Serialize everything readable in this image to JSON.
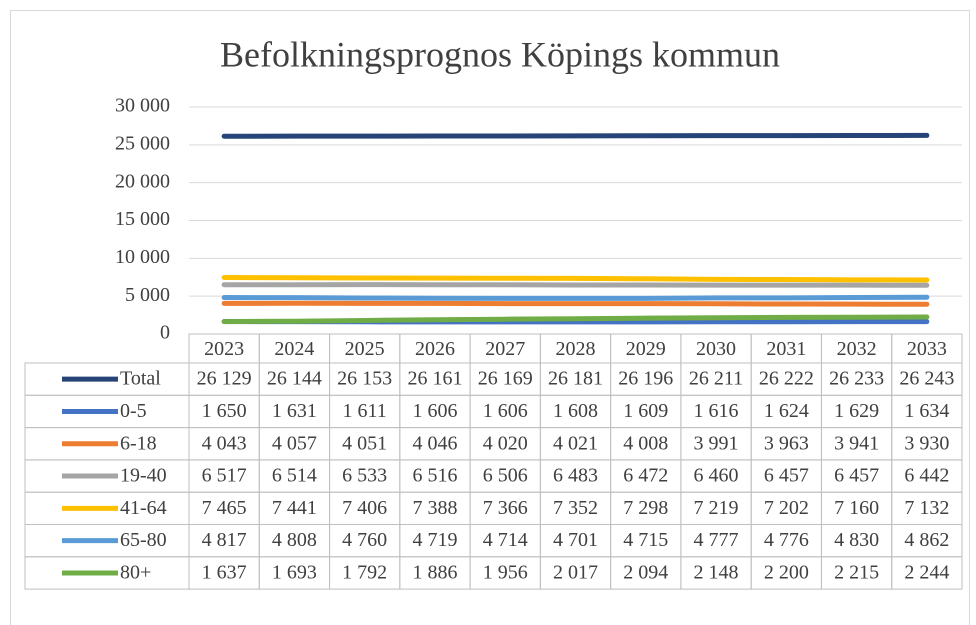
{
  "chart_data": {
    "type": "line",
    "title": "Befolkningsprognos Köpings kommun",
    "categories": [
      "2023",
      "2024",
      "2025",
      "2026",
      "2027",
      "2028",
      "2029",
      "2030",
      "2031",
      "2032",
      "2033"
    ],
    "ylim": [
      0,
      30000
    ],
    "yticks": [
      0,
      {
        "value": 5000,
        "label": "5 000"
      },
      {
        "value": 10000,
        "label": "10 000"
      },
      {
        "value": 15000,
        "label": "15 000"
      },
      {
        "value": 20000,
        "label": "20 000"
      },
      {
        "value": 25000,
        "label": "25 000"
      },
      {
        "value": 30000,
        "label": "30 000"
      }
    ],
    "grid": true,
    "series": [
      {
        "name": "Total",
        "color": "#264478",
        "values": [
          26129,
          26144,
          26153,
          26161,
          26169,
          26181,
          26196,
          26211,
          26222,
          26233,
          26243
        ],
        "value_labels": [
          "26 129",
          "26 144",
          "26 153",
          "26 161",
          "26 169",
          "26 181",
          "26 196",
          "26 211",
          "26 222",
          "26 233",
          "26 243"
        ]
      },
      {
        "name": "0-5",
        "color": "#4472c4",
        "values": [
          1650,
          1631,
          1611,
          1606,
          1606,
          1608,
          1609,
          1616,
          1624,
          1629,
          1634
        ],
        "value_labels": [
          "1 650",
          "1 631",
          "1 611",
          "1 606",
          "1 606",
          "1 608",
          "1 609",
          "1 616",
          "1 624",
          "1 629",
          "1 634"
        ]
      },
      {
        "name": "6-18",
        "color": "#ed7d31",
        "values": [
          4043,
          4057,
          4051,
          4046,
          4020,
          4021,
          4008,
          3991,
          3963,
          3941,
          3930
        ],
        "value_labels": [
          "4 043",
          "4 057",
          "4 051",
          "4 046",
          "4 020",
          "4 021",
          "4 008",
          "3 991",
          "3 963",
          "3 941",
          "3 930"
        ]
      },
      {
        "name": "19-40",
        "color": "#a5a5a5",
        "values": [
          6517,
          6514,
          6533,
          6516,
          6506,
          6483,
          6472,
          6460,
          6457,
          6457,
          6442
        ],
        "value_labels": [
          "6 517",
          "6 514",
          "6 533",
          "6 516",
          "6 506",
          "6 483",
          "6 472",
          "6 460",
          "6 457",
          "6 457",
          "6 442"
        ]
      },
      {
        "name": "41-64",
        "color": "#ffc000",
        "values": [
          7465,
          7441,
          7406,
          7388,
          7366,
          7352,
          7298,
          7219,
          7202,
          7160,
          7132
        ],
        "value_labels": [
          "7 465",
          "7 441",
          "7 406",
          "7 388",
          "7 366",
          "7 352",
          "7 298",
          "7 219",
          "7 202",
          "7 160",
          "7 132"
        ]
      },
      {
        "name": "65-80",
        "color": "#5b9bd5",
        "values": [
          4817,
          4808,
          4760,
          4719,
          4714,
          4701,
          4715,
          4777,
          4776,
          4830,
          4862
        ],
        "value_labels": [
          "4 817",
          "4 808",
          "4 760",
          "4 719",
          "4 714",
          "4 701",
          "4 715",
          "4 777",
          "4 776",
          "4 830",
          "4 862"
        ]
      },
      {
        "name": "80+",
        "color": "#70ad47",
        "values": [
          1637,
          1693,
          1792,
          1886,
          1956,
          2017,
          2094,
          2148,
          2200,
          2215,
          2244
        ],
        "value_labels": [
          "1 637",
          "1 693",
          "1 792",
          "1 886",
          "1 956",
          "2 017",
          "2 094",
          "2 148",
          "2 200",
          "2 215",
          "2 244"
        ]
      }
    ]
  }
}
